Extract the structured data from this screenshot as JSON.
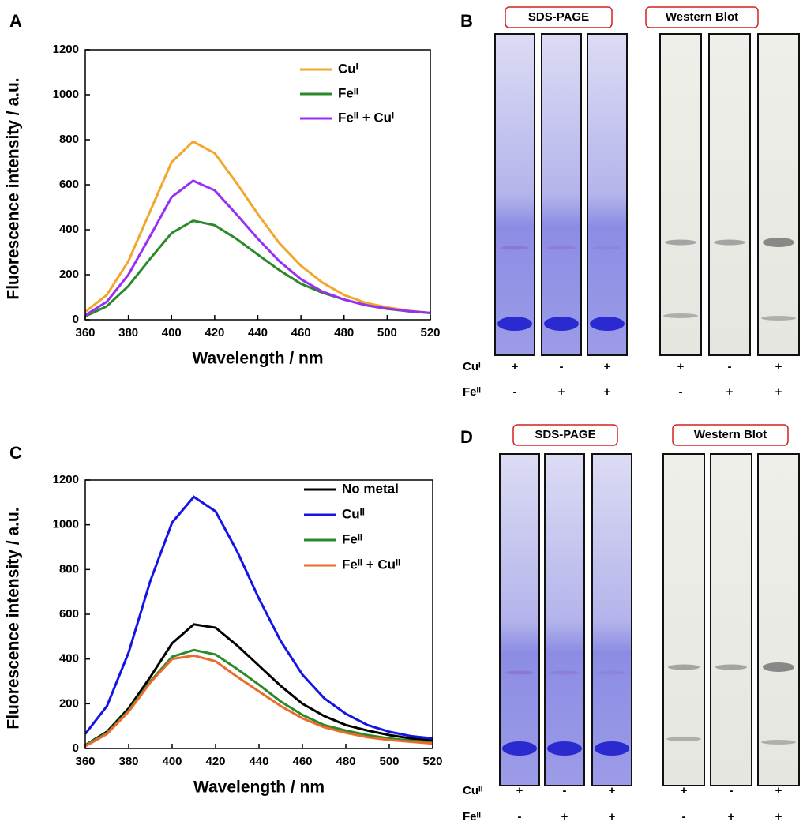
{
  "chart_data": [
    {
      "type": "line",
      "panel": "A",
      "xlabel": "Wavelength / nm",
      "ylabel": "Fluorescence intensity / a.u.",
      "x": [
        360,
        370,
        380,
        390,
        400,
        410,
        420,
        430,
        440,
        450,
        460,
        470,
        480,
        490,
        500,
        510,
        520
      ],
      "xlim": [
        360,
        520
      ],
      "xticks": [
        360,
        380,
        400,
        420,
        440,
        460,
        480,
        500,
        520
      ],
      "ylim": [
        0,
        1200
      ],
      "yticks": [
        0,
        200,
        400,
        600,
        800,
        1000,
        1200
      ],
      "series": [
        {
          "name": "Cuᴵ",
          "color": "#f2a72c",
          "values": [
            35,
            110,
            260,
            480,
            700,
            792,
            740,
            610,
            470,
            340,
            240,
            165,
            110,
            75,
            55,
            40,
            30
          ]
        },
        {
          "name": "Feᴵᴵ",
          "color": "#2a8a2a",
          "values": [
            15,
            60,
            150,
            270,
            385,
            440,
            420,
            360,
            290,
            220,
            160,
            120,
            90,
            65,
            48,
            38,
            30
          ]
        },
        {
          "name": "Feᴵᴵ + Cuᴵ",
          "color": "#9a2ef5",
          "values": [
            20,
            80,
            200,
            370,
            545,
            618,
            575,
            470,
            360,
            260,
            180,
            125,
            90,
            65,
            50,
            38,
            30
          ]
        }
      ]
    },
    {
      "type": "line",
      "panel": "C",
      "xlabel": "Wavelength / nm",
      "ylabel": "Fluorescence intensity / a.u.",
      "x": [
        360,
        370,
        380,
        390,
        400,
        410,
        420,
        430,
        440,
        450,
        460,
        470,
        480,
        490,
        500,
        510,
        520
      ],
      "xlim": [
        360,
        520
      ],
      "xticks": [
        360,
        380,
        400,
        420,
        440,
        460,
        480,
        500,
        520
      ],
      "ylim": [
        0,
        1200
      ],
      "yticks": [
        0,
        200,
        400,
        600,
        800,
        1000,
        1200
      ],
      "series": [
        {
          "name": "No metal",
          "color": "#000000",
          "values": [
            15,
            75,
            180,
            320,
            470,
            555,
            540,
            460,
            370,
            280,
            200,
            145,
            105,
            80,
            60,
            45,
            35
          ]
        },
        {
          "name": "Cuᴵᴵ",
          "color": "#1414e6",
          "values": [
            65,
            190,
            430,
            750,
            1010,
            1125,
            1060,
            880,
            670,
            480,
            330,
            225,
            155,
            105,
            75,
            55,
            45
          ]
        },
        {
          "name": "Feᴵᴵ",
          "color": "#2a8a2a",
          "values": [
            15,
            70,
            170,
            300,
            410,
            440,
            420,
            355,
            285,
            210,
            150,
            105,
            80,
            60,
            45,
            35,
            28
          ]
        },
        {
          "name": "Feᴵᴵ + Cuᴵᴵ",
          "color": "#ec6a2c",
          "values": [
            10,
            65,
            165,
            295,
            400,
            415,
            390,
            320,
            255,
            190,
            135,
            95,
            70,
            50,
            38,
            30,
            22
          ]
        }
      ]
    }
  ],
  "gels": [
    {
      "panel": "B",
      "headers": [
        "SDS-PAGE",
        "Western Blot"
      ],
      "rows": [
        {
          "label": "Cuᴵ",
          "signs": [
            "+",
            "-",
            "+",
            "+",
            "-",
            "+"
          ]
        },
        {
          "label": "Feᴵᴵ",
          "signs": [
            "-",
            "+",
            "+",
            "-",
            "+",
            "+"
          ]
        }
      ]
    },
    {
      "panel": "D",
      "headers": [
        "SDS-PAGE",
        "Western Blot"
      ],
      "rows": [
        {
          "label": "Cuᴵᴵ",
          "signs": [
            "+",
            "-",
            "+",
            "+",
            "-",
            "+"
          ]
        },
        {
          "label": "Feᴵᴵ",
          "signs": [
            "-",
            "+",
            "+",
            "-",
            "+",
            "+"
          ]
        }
      ]
    }
  ]
}
